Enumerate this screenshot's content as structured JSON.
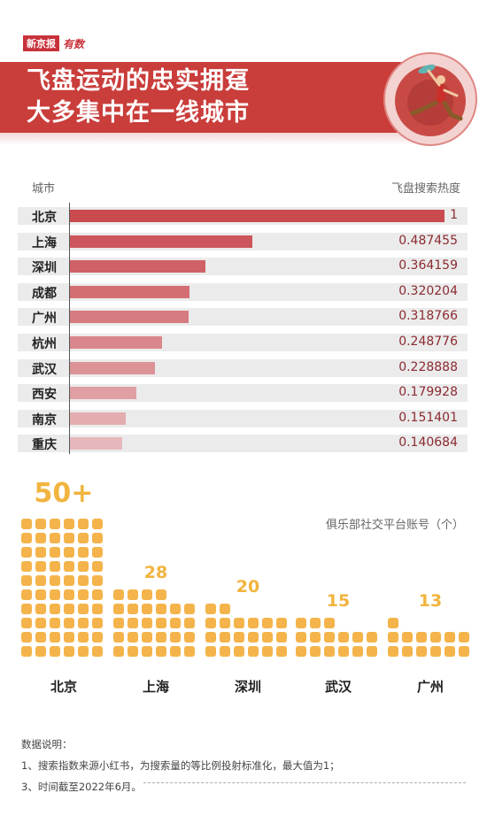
{
  "logo": {
    "brand": "新京报",
    "sub": "有数"
  },
  "title": {
    "line1": "飞盘运动的忠实拥趸",
    "line2": "大多集中在一线城市"
  },
  "colors": {
    "banner": "#c93d3a",
    "bar_dark": "#c94a4f",
    "bar_light": "#e6b8bb",
    "block": "#f4b44b",
    "value_text": "#8b2b30"
  },
  "chart_data": [
    {
      "type": "bar",
      "orientation": "horizontal",
      "xlabel": "城市",
      "ylabel": "飞盘搜索热度",
      "categories": [
        "北京",
        "上海",
        "深圳",
        "成都",
        "广州",
        "杭州",
        "武汉",
        "西安",
        "南京",
        "重庆"
      ],
      "values": [
        1,
        0.487455,
        0.364159,
        0.320204,
        0.318766,
        0.248776,
        0.228888,
        0.179928,
        0.151401,
        0.140684
      ],
      "value_labels": [
        "1",
        "0.487455",
        "0.364159",
        "0.320204",
        "0.318766",
        "0.248776",
        "0.228888",
        "0.179928",
        "0.151401",
        "0.140684"
      ],
      "xlim": [
        0,
        1
      ]
    },
    {
      "type": "bar",
      "title": "俱乐部社交平台账号（个）",
      "categories": [
        "北京",
        "上海",
        "深圳",
        "武汉",
        "广州"
      ],
      "values": [
        50,
        28,
        20,
        15,
        13
      ],
      "value_labels": [
        "50+",
        "28",
        "20",
        "15",
        "13"
      ]
    }
  ],
  "notes": {
    "heading": "数据说明：",
    "items": [
      "1、搜索指数来源小红书，为搜索量的等比例投射标准化，最大值为1；",
      "3、时间截至2022年6月。"
    ]
  }
}
